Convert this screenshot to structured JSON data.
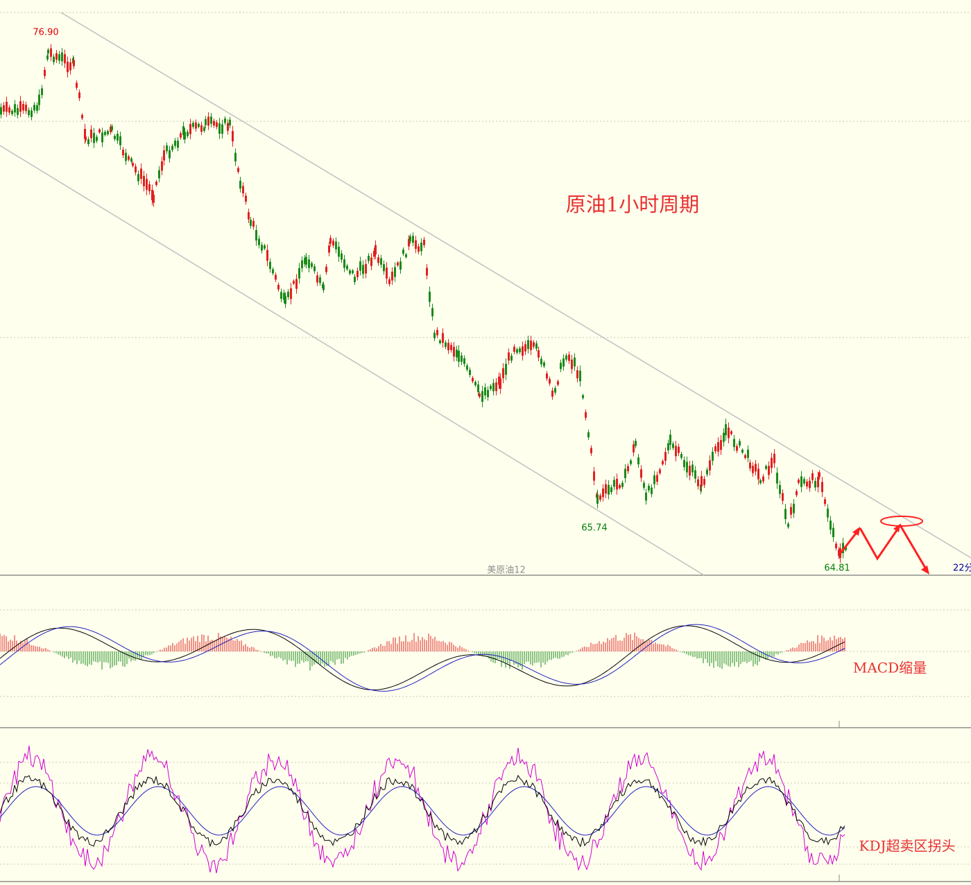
{
  "price_panel": {
    "title": "原油1小时周期",
    "high_label": "76.90",
    "low_label_1": "65.74",
    "low_label_2": "64.81",
    "instrument": "美原油12",
    "period_label": "22分"
  },
  "macd_panel": {
    "note": "MACD缩量"
  },
  "kdj_panel": {
    "note": "KDJ超卖区拐头"
  }
}
